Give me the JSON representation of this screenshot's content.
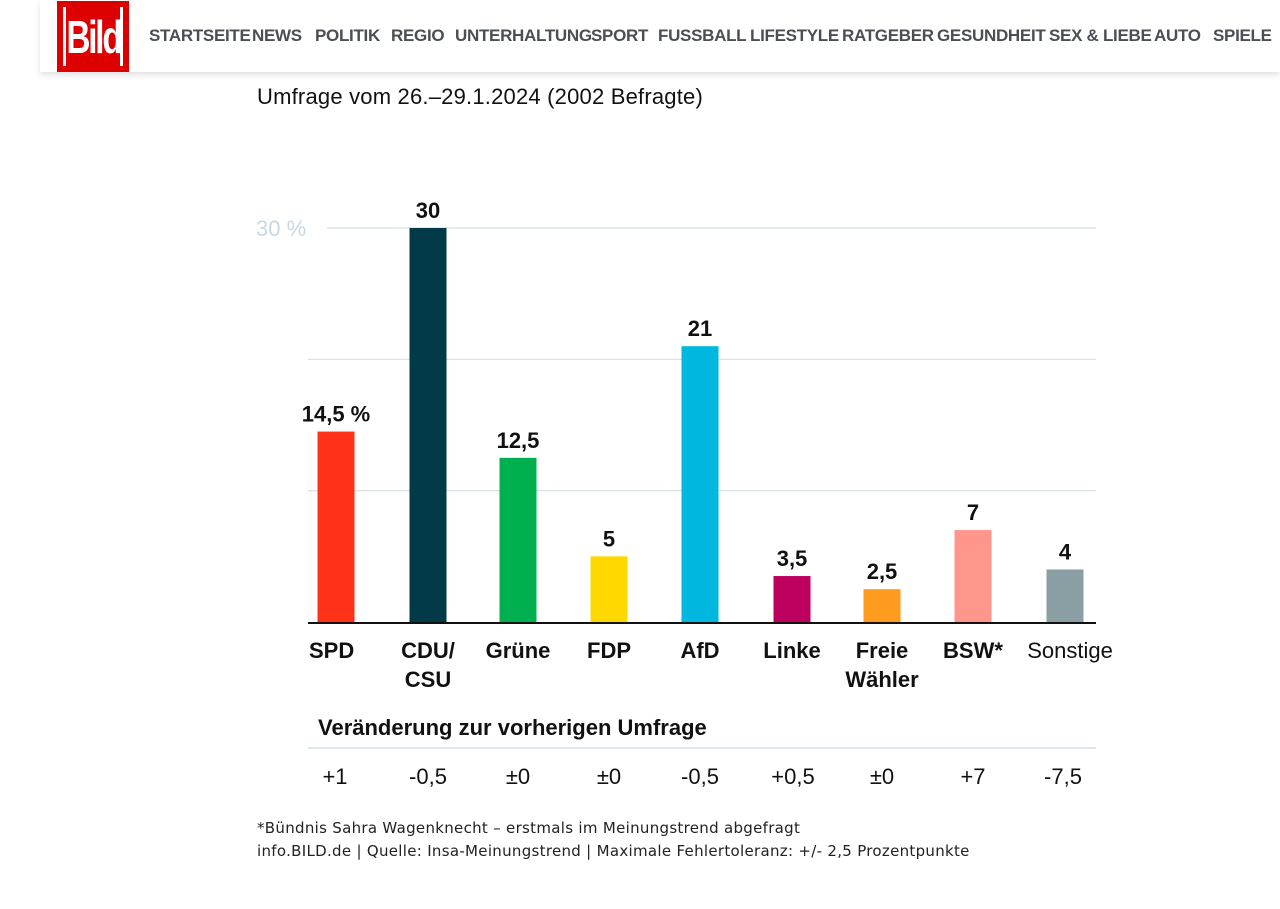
{
  "header": {
    "logo_text": "Bild",
    "nav": [
      "STARTSEITE",
      "NEWS",
      "POLITIK",
      "REGIO",
      "UNTERHALTUNG",
      "SPORT",
      "FUSSBALL",
      "LIFESTYLE",
      "RATGEBER",
      "GESUNDHEIT",
      "SEX & LIEBE",
      "AUTO",
      "SPIELE"
    ]
  },
  "subtitle": "Umfrage vom 26.–29.1.2024 (2002 Befragte)",
  "chart_data": {
    "type": "bar",
    "title": "",
    "subtitle": "Umfrage vom 26.–29.1.2024 (2002 Befragte)",
    "xlabel": "",
    "ylabel": "",
    "ylim": [
      0,
      30
    ],
    "y_ticks": [
      10,
      20,
      30
    ],
    "y_tick_labels": [
      "",
      "",
      "30 %"
    ],
    "grid": true,
    "categories": [
      "SPD",
      "CDU/ CSU",
      "Grüne",
      "FDP",
      "AfD",
      "Linke",
      "Freie Wähler",
      "BSW*",
      "Sonstige"
    ],
    "category_lines": [
      [
        "SPD"
      ],
      [
        "CDU/",
        "CSU"
      ],
      [
        "Grüne"
      ],
      [
        "FDP"
      ],
      [
        "AfD"
      ],
      [
        "Linke"
      ],
      [
        "Freie",
        "Wähler"
      ],
      [
        "BSW*"
      ],
      [
        "Sonstige"
      ]
    ],
    "values": [
      14.5,
      30,
      12.5,
      5,
      21,
      3.5,
      2.5,
      7,
      4
    ],
    "value_labels": [
      "14,5 %",
      "30",
      "12,5",
      "5",
      "21",
      "3,5",
      "2,5",
      "7",
      "4"
    ],
    "colors": [
      "#ff3118",
      "#023a48",
      "#00b04f",
      "#ffd800",
      "#00b7e0",
      "#be005e",
      "#ff9b1e",
      "#ff968c",
      "#8a9fa3"
    ],
    "change_title": "Veränderung zur vorherigen Umfrage",
    "changes": [
      "+1",
      "-0,5",
      "±0",
      "±0",
      "-0,5",
      "+0,5",
      "±0",
      "+7",
      "-7,5"
    ]
  },
  "footnotes": [
    "*Bündnis Sahra Wagenknecht – erstmals im Meinungstrend abgefragt",
    "info.BILD.de | Quelle: Insa-Meinungstrend | Maximale Fehlertoleranz: +/- 2,5 Prozentpunkte"
  ]
}
